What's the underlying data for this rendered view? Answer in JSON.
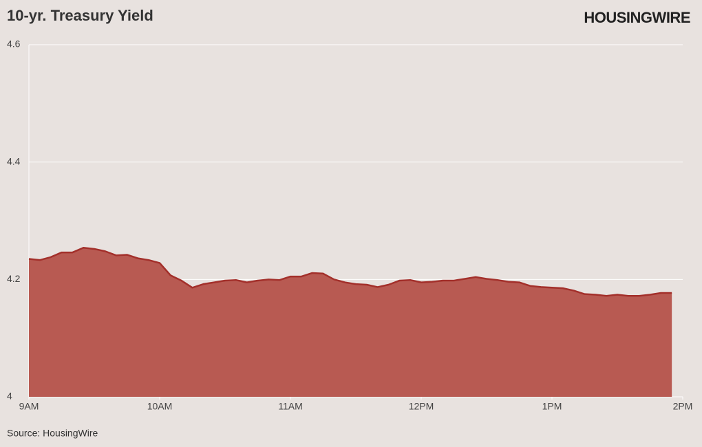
{
  "chart_data": {
    "type": "area",
    "title": "10-yr. Treasury Yield",
    "logo": "HOUSINGWIRE",
    "source": "Source: HousingWire",
    "categories": [
      "9AM",
      null,
      null,
      null,
      null,
      null,
      null,
      null,
      null,
      null,
      null,
      null,
      "10AM",
      null,
      null,
      null,
      null,
      null,
      null,
      null,
      null,
      null,
      null,
      null,
      "11AM",
      null,
      null,
      null,
      null,
      null,
      null,
      null,
      null,
      null,
      null,
      null,
      "12PM",
      null,
      null,
      null,
      null,
      null,
      null,
      null,
      null,
      null,
      null,
      null,
      "1PM",
      null,
      null,
      null,
      null,
      null,
      null,
      null,
      null,
      null,
      null,
      null,
      "2PM"
    ],
    "values": [
      4.235,
      4.233,
      4.238,
      4.246,
      4.246,
      4.254,
      4.252,
      4.248,
      4.241,
      4.242,
      4.236,
      4.233,
      4.228,
      4.207,
      4.198,
      4.186,
      4.192,
      4.195,
      4.198,
      4.199,
      4.195,
      4.198,
      4.2,
      4.199,
      4.205,
      4.205,
      4.211,
      4.21,
      4.2,
      4.195,
      4.192,
      4.191,
      4.187,
      4.191,
      4.198,
      4.199,
      4.195,
      4.196,
      4.198,
      4.198,
      4.201,
      4.204,
      4.201,
      4.199,
      4.196,
      4.195,
      4.189,
      4.187,
      4.186,
      4.185,
      4.181,
      4.175,
      4.174,
      4.172,
      4.174,
      4.172,
      4.172,
      4.174,
      4.177,
      4.177,
      null
    ],
    "color": "#b85a52",
    "line_color": "#a3302b",
    "ylim": [
      4,
      4.6
    ],
    "yticks": [
      4,
      4.2,
      4.4,
      4.6
    ],
    "grid": true
  }
}
